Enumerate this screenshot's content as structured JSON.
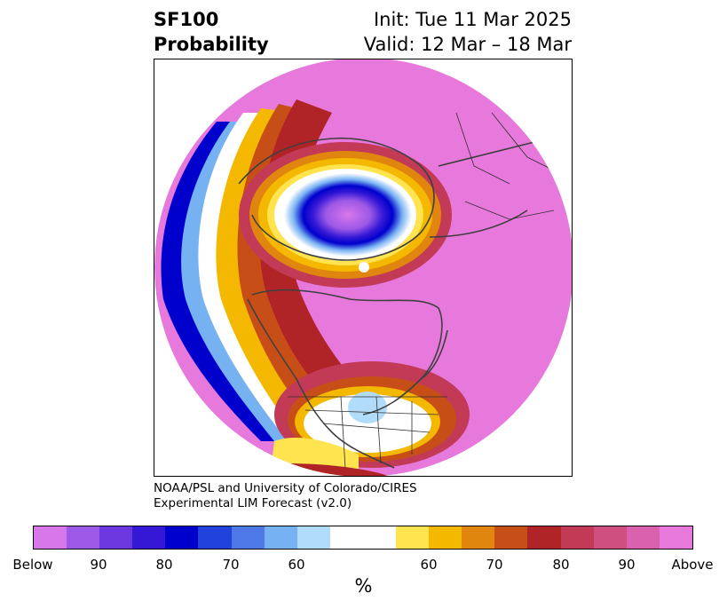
{
  "header": {
    "title_line1": "SF100",
    "title_line2": "Probability",
    "init": "Init: Tue 11 Mar 2025",
    "valid": "Valid: 12 Mar – 18 Mar"
  },
  "credit": {
    "line1": "NOAA/PSL and University of Colorado/CIRES",
    "line2": "Experimental LIM Forecast (v2.0)"
  },
  "colorbar": {
    "colors": [
      "#d877ea",
      "#9c58e6",
      "#6b37df",
      "#3518d6",
      "#0000cd",
      "#2242dc",
      "#4f78e7",
      "#76b1f2",
      "#b0dcfa",
      "#ffffff",
      "#ffe44f",
      "#f4b800",
      "#e0860f",
      "#c74f17",
      "#b02326",
      "#c23a55",
      "#cf4f7f",
      "#da61ad",
      "#e778dc"
    ],
    "tick_labels": [
      "Below",
      "90",
      "80",
      "70",
      "60",
      "60",
      "70",
      "80",
      "90",
      "Above"
    ],
    "unit": "%"
  },
  "map": {
    "projection": "north-polar-stereographic",
    "features": [
      "continent outlines",
      "country borders",
      "US state borders"
    ]
  }
}
